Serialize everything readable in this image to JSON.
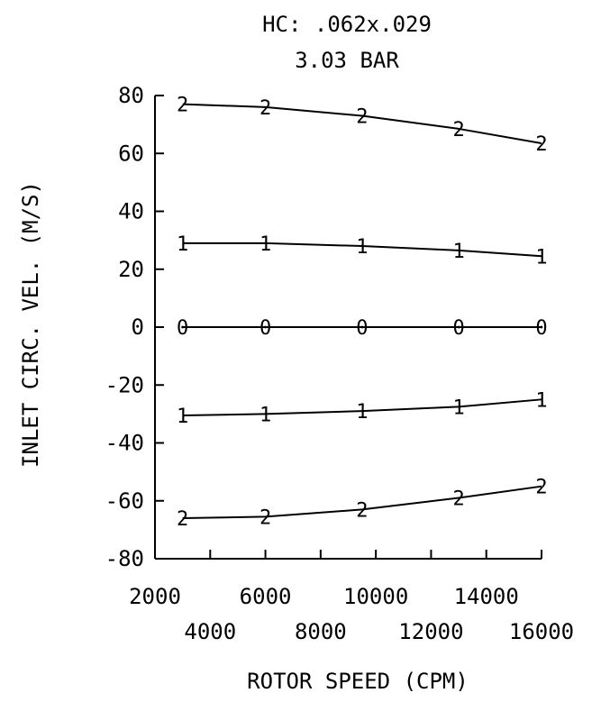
{
  "chart_data": {
    "type": "line",
    "title": "HC: .062x.029",
    "subtitle": "3.03 BAR",
    "xlabel": "ROTOR SPEED (CPM)",
    "ylabel": "INLET CIRC. VEL. (M/S)",
    "xlim": [
      2000,
      16000
    ],
    "ylim": [
      -80,
      80
    ],
    "x_ticks_row1": [
      "2000",
      "6000",
      "10000",
      "14000"
    ],
    "x_ticks_row2": [
      "4000",
      "8000",
      "12000",
      "16000"
    ],
    "y_ticks": [
      "80",
      "60",
      "40",
      "20",
      "0",
      "-20",
      "-40",
      "-60",
      "-80"
    ],
    "series": [
      {
        "marker": "2",
        "x": [
          3000,
          6000,
          9500,
          13000,
          16000
        ],
        "y": [
          77,
          76,
          73,
          68.5,
          63.5
        ]
      },
      {
        "marker": "1",
        "x": [
          3000,
          6000,
          9500,
          13000,
          16000
        ],
        "y": [
          29,
          29,
          28,
          26.5,
          24.5
        ]
      },
      {
        "marker": "0",
        "x": [
          3000,
          6000,
          9500,
          13000,
          16000
        ],
        "y": [
          0,
          0,
          0,
          0,
          0
        ]
      },
      {
        "marker": "1",
        "x": [
          3000,
          6000,
          9500,
          13000,
          16000
        ],
        "y": [
          -30.5,
          -30,
          -29,
          -27.5,
          -25
        ]
      },
      {
        "marker": "2",
        "x": [
          3000,
          6000,
          9500,
          13000,
          16000
        ],
        "y": [
          -66,
          -65.5,
          -63,
          -59,
          -55
        ]
      }
    ]
  }
}
